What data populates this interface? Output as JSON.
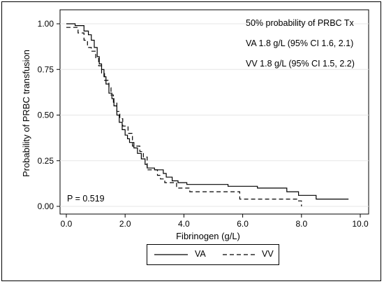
{
  "chart_data": {
    "type": "line",
    "xlabel": "Fibrinogen (g/L)",
    "ylabel": "Probability of PRBC transfusion",
    "xlim": [
      0,
      10
    ],
    "ylim": [
      0,
      1
    ],
    "x_ticks": [
      "0.0",
      "2.0",
      "4.0",
      "6.0",
      "8.0",
      "10.0"
    ],
    "y_ticks": [
      "0.00",
      "0.25",
      "0.50",
      "0.75",
      "1.00"
    ],
    "annotations": {
      "header": "50% probability of PRBC Tx",
      "va_ci": "VA 1.8 g/L (95% CI 1.6, 2.1)",
      "vv_ci": "VV 1.8 g/L (95% CI 1.5, 2.2)",
      "p_value": "P = 0.519"
    },
    "legend_position": "bottom",
    "series": [
      {
        "name": "VA",
        "style": "solid",
        "color": "#000000",
        "x": [
          0,
          0.3,
          0.6,
          0.75,
          0.85,
          0.95,
          1.05,
          1.12,
          1.2,
          1.28,
          1.35,
          1.45,
          1.55,
          1.62,
          1.72,
          1.8,
          1.9,
          2.0,
          2.08,
          2.15,
          2.3,
          2.42,
          2.55,
          2.68,
          2.75,
          3.0,
          3.3,
          3.4,
          3.6,
          3.8,
          4.1,
          4.5,
          5.0,
          5.5,
          6.5,
          7.0,
          7.5,
          7.9,
          8.5,
          9.6
        ],
        "y": [
          1.0,
          0.99,
          0.96,
          0.94,
          0.91,
          0.87,
          0.82,
          0.78,
          0.75,
          0.71,
          0.67,
          0.62,
          0.59,
          0.55,
          0.5,
          0.46,
          0.42,
          0.39,
          0.37,
          0.35,
          0.32,
          0.29,
          0.26,
          0.23,
          0.21,
          0.2,
          0.18,
          0.16,
          0.14,
          0.13,
          0.12,
          0.12,
          0.12,
          0.11,
          0.1,
          0.1,
          0.08,
          0.06,
          0.04,
          0.04
        ]
      },
      {
        "name": "VV",
        "style": "dashed",
        "color": "#000000",
        "x": [
          0,
          0.4,
          0.6,
          0.72,
          0.85,
          1.0,
          1.1,
          1.2,
          1.3,
          1.45,
          1.52,
          1.6,
          1.72,
          1.82,
          1.92,
          2.1,
          2.25,
          2.5,
          2.62,
          2.75,
          3.1,
          3.2,
          3.35,
          3.75,
          4.2,
          5.0,
          5.9,
          7.0,
          7.9,
          8.0
        ],
        "y": [
          0.98,
          0.95,
          0.91,
          0.87,
          0.85,
          0.81,
          0.77,
          0.73,
          0.69,
          0.65,
          0.61,
          0.57,
          0.52,
          0.48,
          0.44,
          0.4,
          0.33,
          0.3,
          0.27,
          0.2,
          0.17,
          0.15,
          0.13,
          0.1,
          0.08,
          0.08,
          0.04,
          0.04,
          0.03,
          0.0
        ]
      }
    ]
  }
}
